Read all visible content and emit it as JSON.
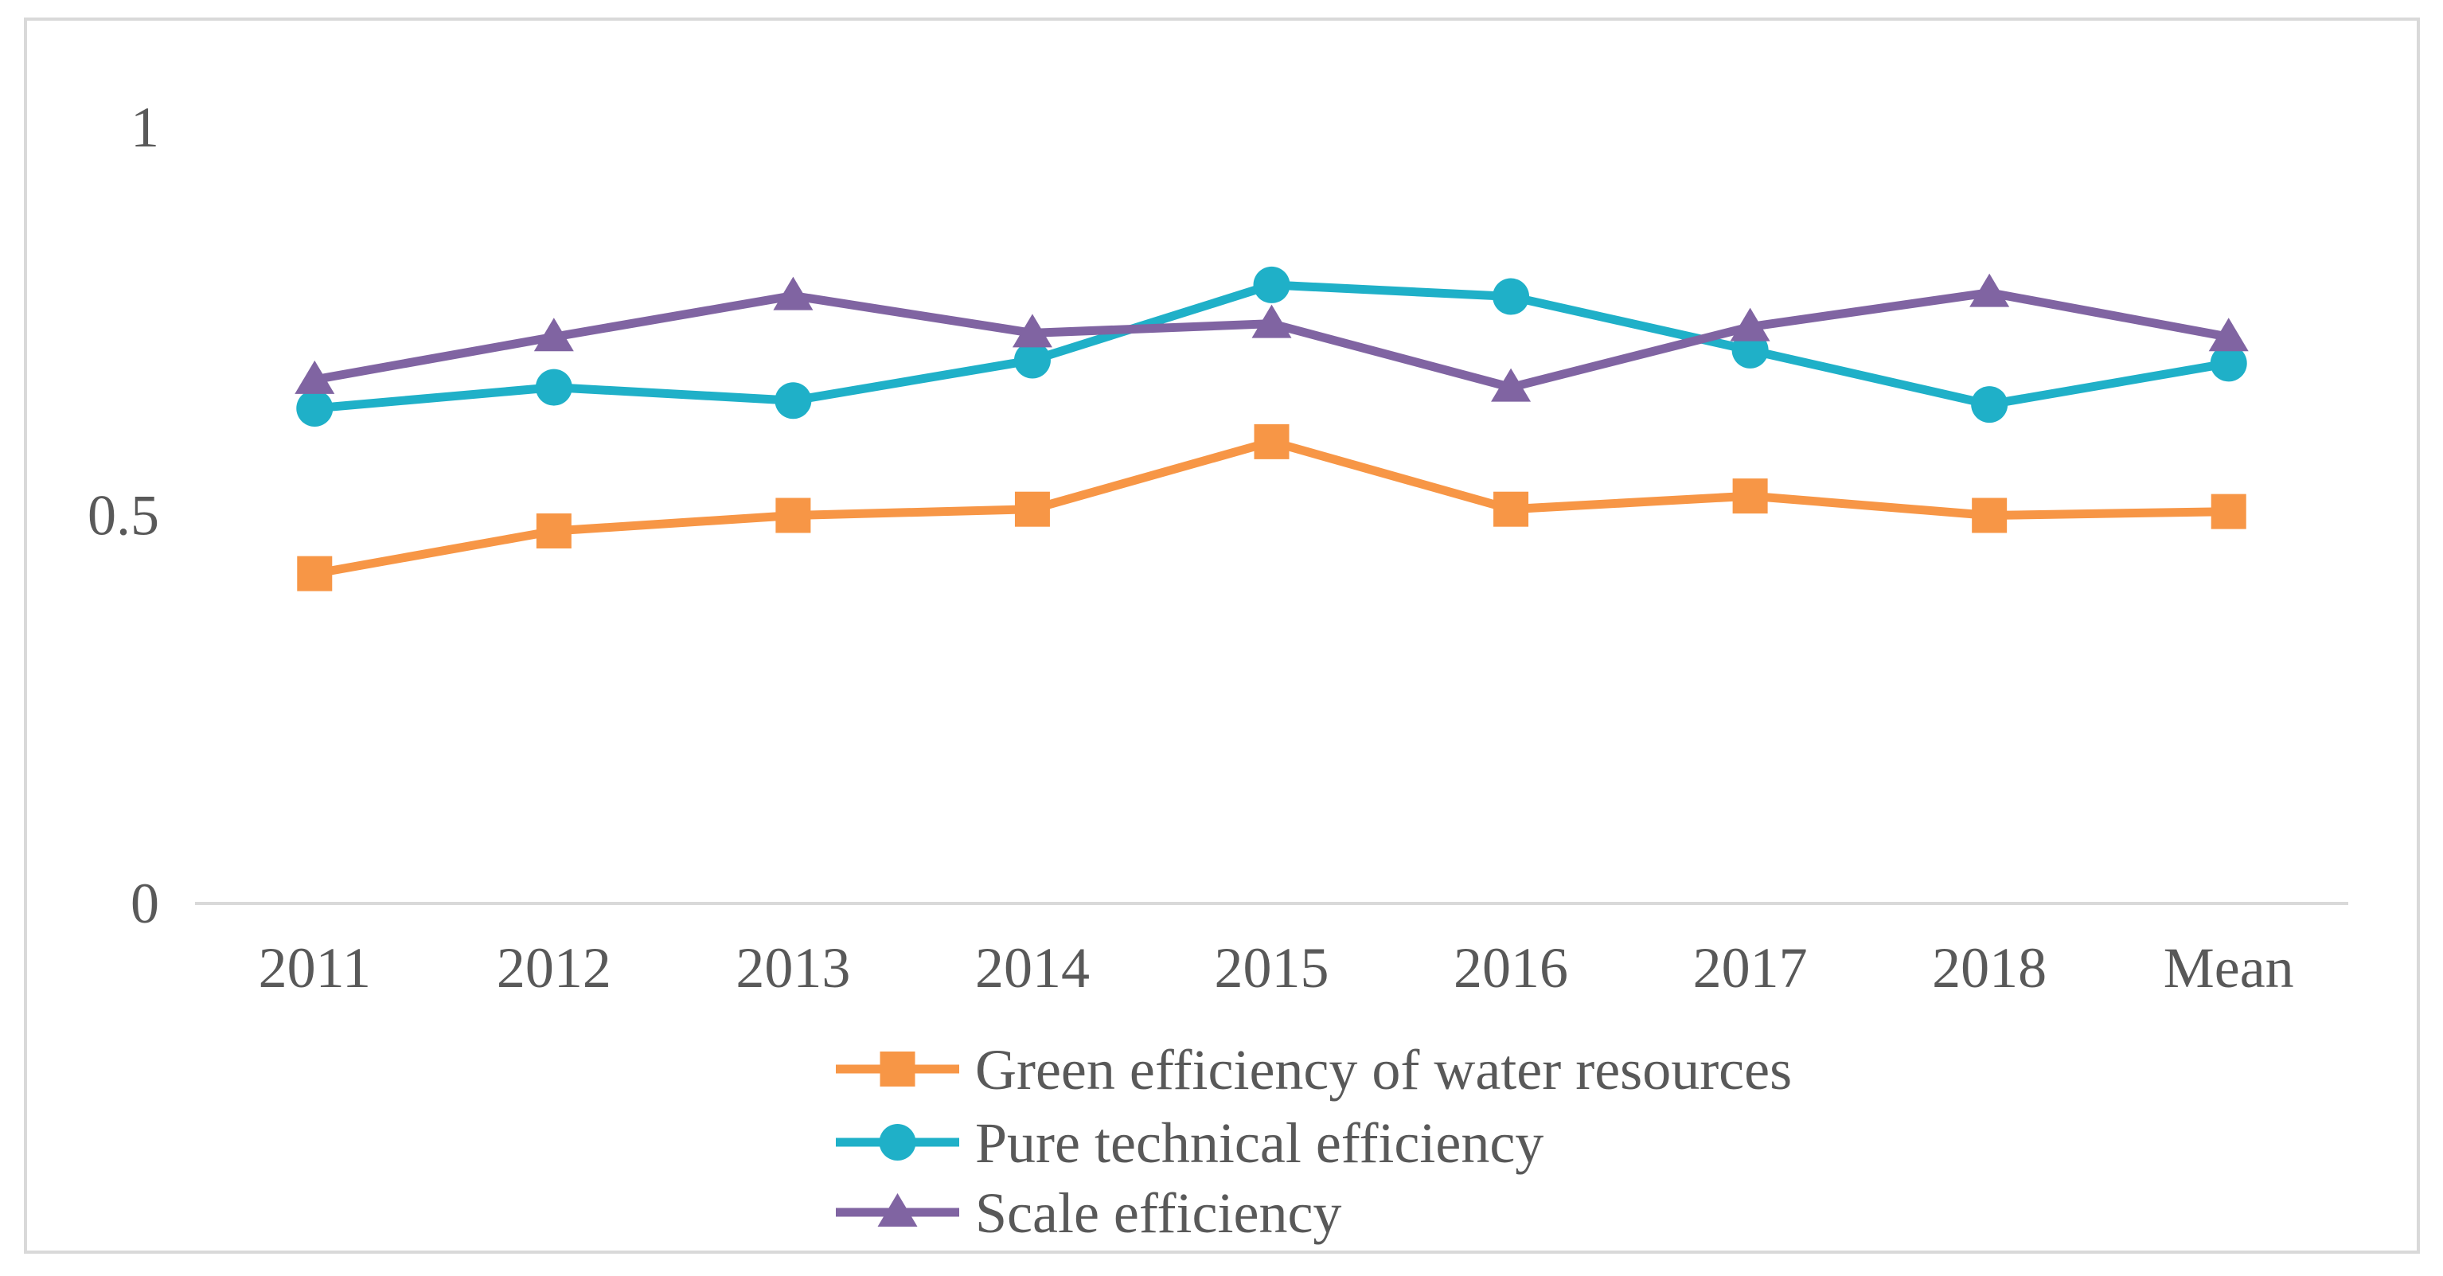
{
  "chart_data": {
    "type": "line",
    "title": "",
    "xlabel": "",
    "ylabel": "",
    "categories": [
      "2011",
      "2012",
      "2013",
      "2014",
      "2015",
      "2016",
      "2017",
      "2018",
      "Mean"
    ],
    "ylim": [
      0,
      1
    ],
    "yticks": [
      {
        "value": 0,
        "label": "0"
      },
      {
        "value": 0.5,
        "label": "0.5"
      },
      {
        "value": 1,
        "label": "1"
      }
    ],
    "grid": false,
    "legend_position": "bottom-center",
    "series": [
      {
        "name": "Green efficiency of water resources",
        "color": "#f79646",
        "marker": "square",
        "values": [
          0.425,
          0.48,
          0.5,
          0.508,
          0.595,
          0.508,
          0.525,
          0.5,
          0.505
        ]
      },
      {
        "name": "Pure technical efficiency",
        "color": "#1fb0c8",
        "marker": "circle",
        "values": [
          0.638,
          0.665,
          0.648,
          0.7,
          0.797,
          0.782,
          0.713,
          0.643,
          0.696
        ]
      },
      {
        "name": "Scale efficiency",
        "color": "#8064a2",
        "marker": "triangle",
        "values": [
          0.675,
          0.73,
          0.783,
          0.735,
          0.747,
          0.665,
          0.743,
          0.787,
          0.73
        ]
      }
    ]
  }
}
